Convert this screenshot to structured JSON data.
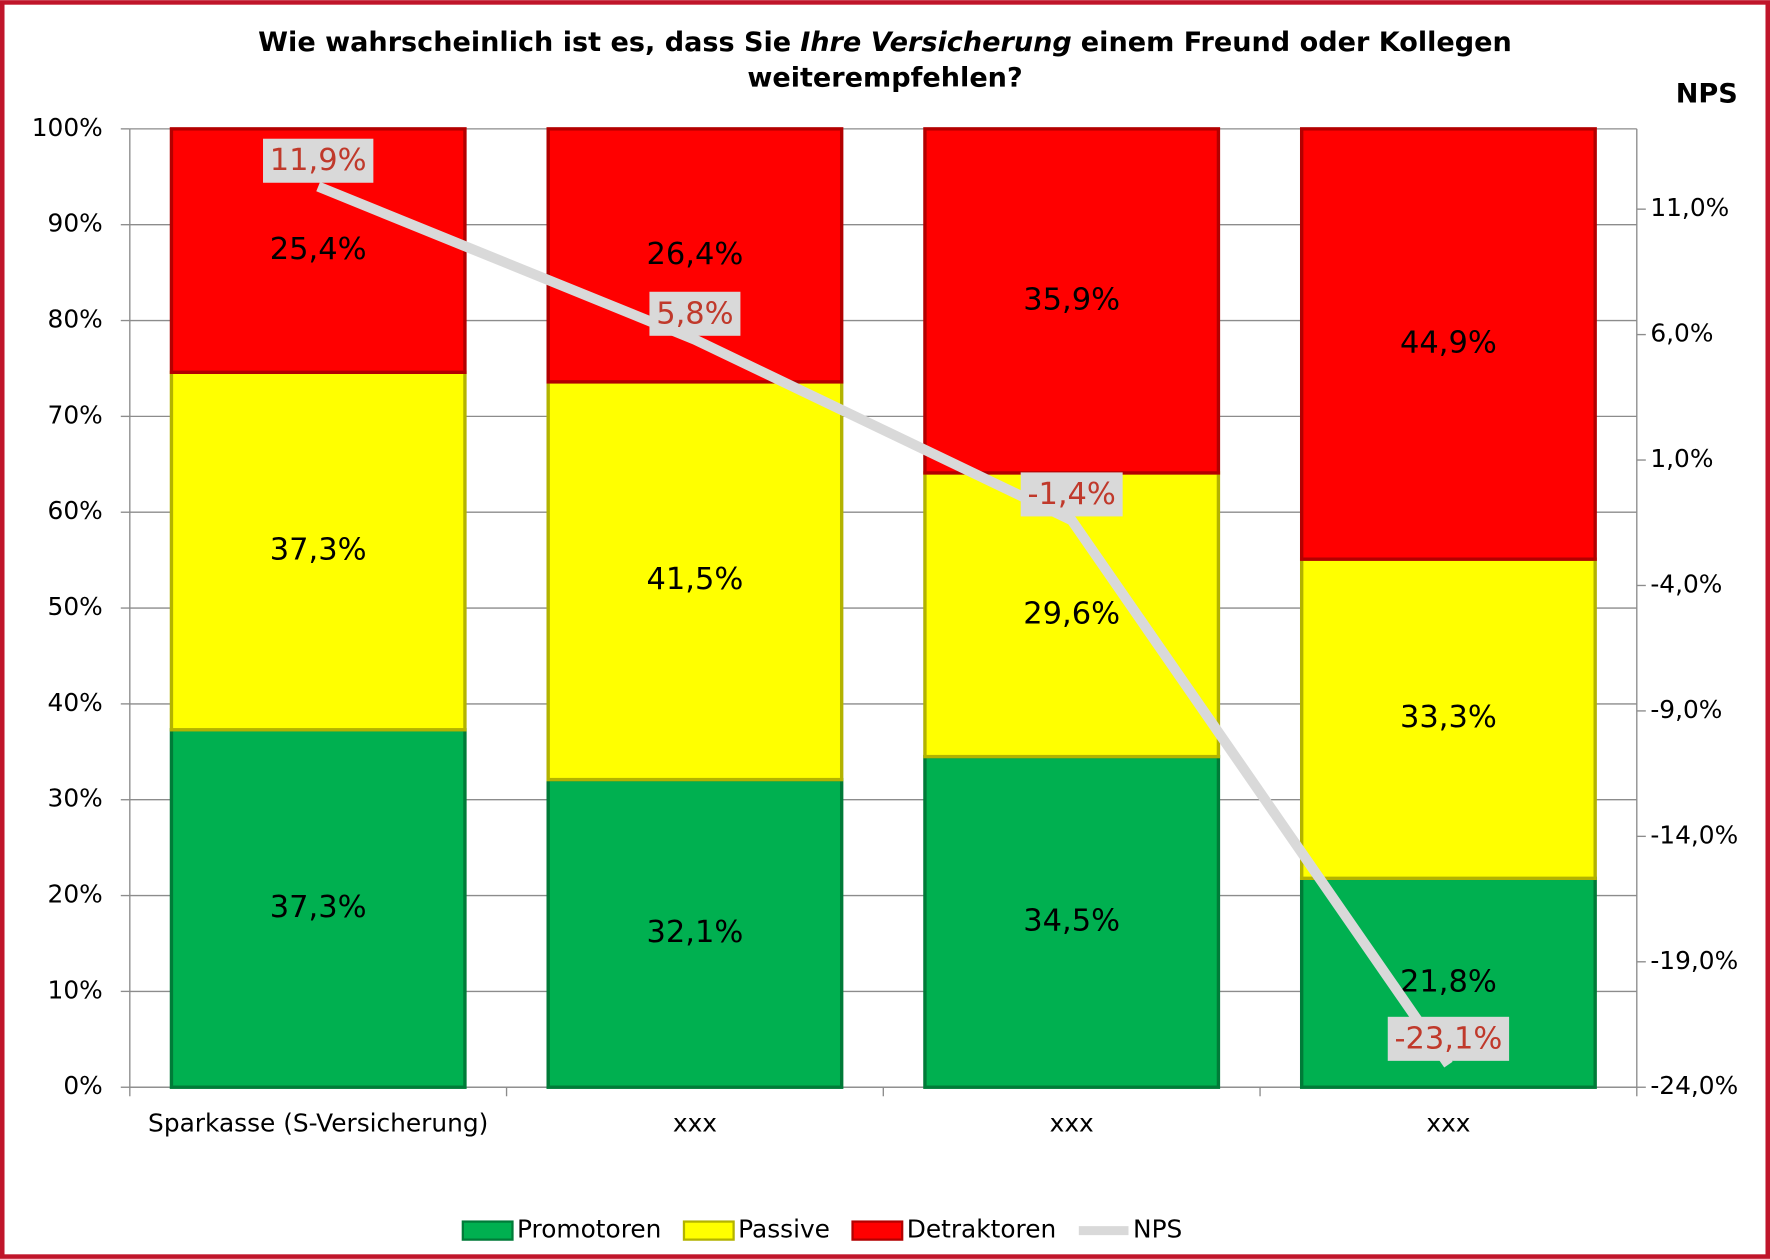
{
  "chart_data": {
    "type": "bar",
    "stacked": true,
    "title": [
      "Wie wahrscheinlich ist es, dass Sie",
      "Ihre Versicherung",
      "einem Freund oder Kollegen",
      "weiterempfehlen?"
    ],
    "y2_label": "NPS",
    "categories": [
      "Sparkasse (S-Versicherung)",
      "xxx",
      "xxx",
      "xxx"
    ],
    "series": [
      {
        "name": "Promotoren",
        "color": "#00b050",
        "values": [
          37.3,
          32.1,
          34.5,
          21.8
        ],
        "value_labels": [
          "37,3%",
          "32,1%",
          "34,5%",
          "21,8%"
        ]
      },
      {
        "name": "Passive",
        "color": "#ffff00",
        "values": [
          37.3,
          41.5,
          29.6,
          33.3
        ],
        "value_labels": [
          "37,3%",
          "41,5%",
          "29,6%",
          "33,3%"
        ]
      },
      {
        "name": "Detraktoren",
        "color": "#ff0000",
        "values": [
          25.4,
          26.4,
          35.9,
          44.9
        ],
        "value_labels": [
          "25,4%",
          "26,4%",
          "35,9%",
          "44,9%"
        ]
      },
      {
        "name": "NPS",
        "type": "line",
        "axis": "y2",
        "color": "#d9d9d9",
        "values": [
          11.9,
          5.8,
          -1.4,
          -23.1
        ],
        "value_labels": [
          "11,9%",
          "5,8%",
          "-1,4%",
          "-23,1%"
        ]
      }
    ],
    "ylim": [
      0,
      100
    ],
    "yticks": [
      {
        "value": 0,
        "label": "0%"
      },
      {
        "value": 10,
        "label": "10%"
      },
      {
        "value": 20,
        "label": "20%"
      },
      {
        "value": 30,
        "label": "30%"
      },
      {
        "value": 40,
        "label": "40%"
      },
      {
        "value": 50,
        "label": "50%"
      },
      {
        "value": 60,
        "label": "60%"
      },
      {
        "value": 70,
        "label": "70%"
      },
      {
        "value": 80,
        "label": "80%"
      },
      {
        "value": 90,
        "label": "90%"
      },
      {
        "value": 100,
        "label": "100%"
      }
    ],
    "y2lim": [
      -24,
      14.2
    ],
    "y2ticks": [
      {
        "value": -24,
        "label": "-24,0%"
      },
      {
        "value": -19,
        "label": "-19,0%"
      },
      {
        "value": -14,
        "label": "-14,0%"
      },
      {
        "value": -9,
        "label": "-9,0%"
      },
      {
        "value": -4,
        "label": "-4,0%"
      },
      {
        "value": 1,
        "label": "1,0%"
      },
      {
        "value": 6,
        "label": "6,0%"
      },
      {
        "value": 11,
        "label": "11,0%"
      }
    ],
    "grid": true,
    "legend": "bottom"
  }
}
